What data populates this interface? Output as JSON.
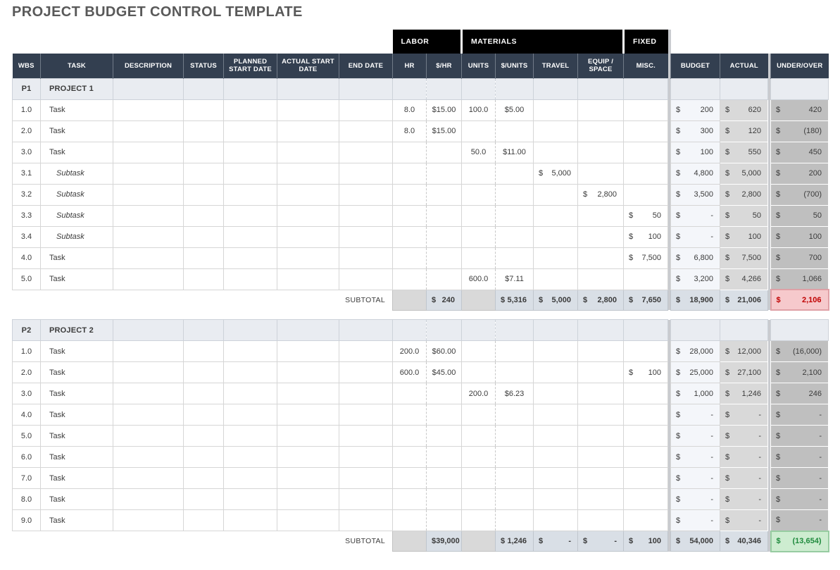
{
  "title": "PROJECT BUDGET CONTROL TEMPLATE",
  "subtotal_label": "SUBTOTAL",
  "groups": {
    "labor": "LABOR",
    "materials": "MATERIALS",
    "fixed": "FIXED"
  },
  "columns": [
    "WBS",
    "TASK",
    "DESCRIPTION",
    "STATUS",
    "PLANNED START DATE",
    "ACTUAL START DATE",
    "END DATE",
    "HR",
    "$/HR",
    "UNITS",
    "$/UNITS",
    "TRAVEL",
    "EQUIP / SPACE",
    "MISC.",
    "BUDGET",
    "ACTUAL",
    "UNDER/OVER"
  ],
  "currency_symbol": "$",
  "colors": {
    "title_text": "#595959",
    "body_text": "#3B3B3B",
    "header_bg": "#333F50",
    "header_text": "#FFFFFF",
    "group_bg": "#000000",
    "grid": "#D6D6D6",
    "sep": "#C9CBCF",
    "project_row_bg": "#E9ECF1",
    "budget_col_bg": "#F4F6FA",
    "actual_col_bg": "#D9D9D9",
    "under_over_col_bg": "#BFBFBF",
    "subtotal_band_bg": "#D9DFE6",
    "subtotal_gray_bg": "#D9D9D9",
    "over_bg": "#F6C9CC",
    "over_text": "#C00000",
    "under_bg": "#CDECD0",
    "under_text": "#1F8A3D"
  },
  "tables": [
    {
      "id": "P1",
      "name": "PROJECT 1",
      "rows": [
        {
          "wbs": "1.0",
          "task": "Task",
          "hr": "8.0",
          "rate": "$15.00",
          "units": "100.0",
          "unit_cost": "$5.00",
          "budget": "200",
          "actual": "620",
          "under_over": "420"
        },
        {
          "wbs": "2.0",
          "task": "Task",
          "hr": "8.0",
          "rate": "$15.00",
          "budget": "300",
          "actual": "120",
          "under_over": "(180)"
        },
        {
          "wbs": "3.0",
          "task": "Task",
          "units": "50.0",
          "unit_cost": "$11.00",
          "budget": "100",
          "actual": "550",
          "under_over": "450"
        },
        {
          "wbs": "3.1",
          "task": "Subtask",
          "subtask": true,
          "travel": "5,000",
          "budget": "4,800",
          "actual": "5,000",
          "under_over": "200"
        },
        {
          "wbs": "3.2",
          "task": "Subtask",
          "subtask": true,
          "equip": "2,800",
          "budget": "3,500",
          "actual": "2,800",
          "under_over": "(700)"
        },
        {
          "wbs": "3.3",
          "task": "Subtask",
          "subtask": true,
          "misc": "50",
          "budget": "-",
          "actual": "50",
          "under_over": "50"
        },
        {
          "wbs": "3.4",
          "task": "Subtask",
          "subtask": true,
          "misc": "100",
          "budget": "-",
          "actual": "100",
          "under_over": "100"
        },
        {
          "wbs": "4.0",
          "task": "Task",
          "misc": "7,500",
          "budget": "6,800",
          "actual": "7,500",
          "under_over": "700"
        },
        {
          "wbs": "5.0",
          "task": "Task",
          "units": "600.0",
          "unit_cost": "$7.11",
          "budget": "3,200",
          "actual": "4,266",
          "under_over": "1,066"
        }
      ],
      "subtotal": {
        "rate": "240",
        "unit_cost": "5,316",
        "travel": "5,000",
        "equip": "2,800",
        "misc": "7,650",
        "budget": "18,900",
        "actual": "21,006",
        "under_over": "2,106",
        "under_over_status": "over"
      }
    },
    {
      "id": "P2",
      "name": "PROJECT 2",
      "rows": [
        {
          "wbs": "1.0",
          "task": "Task",
          "hr": "200.0",
          "rate": "$60.00",
          "budget": "28,000",
          "actual": "12,000",
          "under_over": "(16,000)"
        },
        {
          "wbs": "2.0",
          "task": "Task",
          "hr": "600.0",
          "rate": "$45.00",
          "misc": "100",
          "budget": "25,000",
          "actual": "27,100",
          "under_over": "2,100"
        },
        {
          "wbs": "3.0",
          "task": "Task",
          "units": "200.0",
          "unit_cost": "$6.23",
          "budget": "1,000",
          "actual": "1,246",
          "under_over": "246"
        },
        {
          "wbs": "4.0",
          "task": "Task",
          "budget": "-",
          "actual": "-",
          "under_over": "-"
        },
        {
          "wbs": "5.0",
          "task": "Task",
          "budget": "-",
          "actual": "-",
          "under_over": "-"
        },
        {
          "wbs": "6.0",
          "task": "Task",
          "budget": "-",
          "actual": "-",
          "under_over": "-"
        },
        {
          "wbs": "7.0",
          "task": "Task",
          "budget": "-",
          "actual": "-",
          "under_over": "-"
        },
        {
          "wbs": "8.0",
          "task": "Task",
          "budget": "-",
          "actual": "-",
          "under_over": "-"
        },
        {
          "wbs": "9.0",
          "task": "Task",
          "budget": "-",
          "actual": "-",
          "under_over": "-"
        }
      ],
      "subtotal": {
        "rate": "39,000",
        "unit_cost": "1,246",
        "travel": "-",
        "equip": "-",
        "misc": "100",
        "budget": "54,000",
        "actual": "40,346",
        "under_over": "(13,654)",
        "under_over_status": "under"
      }
    }
  ]
}
